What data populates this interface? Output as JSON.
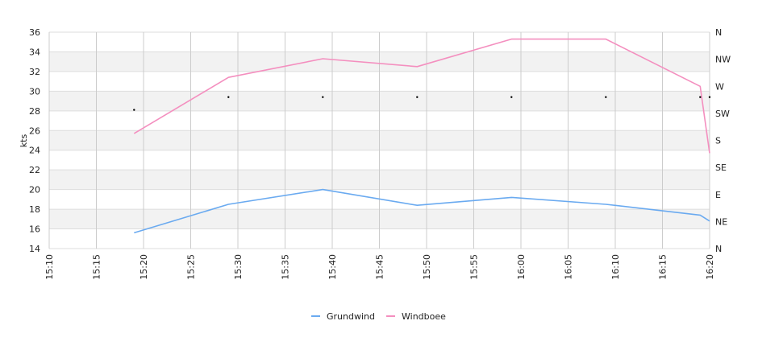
{
  "chart_data": {
    "type": "line",
    "ylabel": "kts",
    "y_ticks": [
      "14",
      "16",
      "18",
      "20",
      "22",
      "24",
      "26",
      "28",
      "30",
      "32",
      "34",
      "36"
    ],
    "ylim": [
      14,
      36
    ],
    "right_axis_labels": [
      "N",
      "NE",
      "E",
      "SE",
      "S",
      "SW",
      "W",
      "NW",
      "N"
    ],
    "x_ticks": [
      "15:10",
      "15:15",
      "15:20",
      "15:25",
      "15:30",
      "15:35",
      "15:40",
      "15:45",
      "15:50",
      "15:55",
      "16:00",
      "16:05",
      "16:10",
      "16:15",
      "16:20"
    ],
    "grid": true,
    "legend_position": "bottom",
    "series": [
      {
        "name": "Grundwind",
        "color": "#6aaaf0",
        "points": [
          {
            "t": "15:19",
            "v": 15.6
          },
          {
            "t": "15:29",
            "v": 18.5
          },
          {
            "t": "15:39",
            "v": 20.0
          },
          {
            "t": "15:49",
            "v": 18.4
          },
          {
            "t": "15:59",
            "v": 19.2
          },
          {
            "t": "16:09",
            "v": 18.5
          },
          {
            "t": "16:19",
            "v": 17.4
          },
          {
            "t": "16:20",
            "v": 16.8
          }
        ]
      },
      {
        "name": "Windboee",
        "color": "#f48fbf",
        "points": [
          {
            "t": "15:19",
            "v": 25.7
          },
          {
            "t": "15:29",
            "v": 31.4
          },
          {
            "t": "15:39",
            "v": 33.3
          },
          {
            "t": "15:49",
            "v": 32.5
          },
          {
            "t": "15:59",
            "v": 35.3
          },
          {
            "t": "16:09",
            "v": 35.3
          },
          {
            "t": "16:19",
            "v": 30.5
          },
          {
            "t": "16:20",
            "v": 23.7
          }
        ]
      }
    ],
    "direction_markers": {
      "color": "#000000",
      "points": [
        {
          "t": "15:19",
          "v": 28.1
        },
        {
          "t": "15:29",
          "v": 29.4
        },
        {
          "t": "15:39",
          "v": 29.4
        },
        {
          "t": "15:49",
          "v": 29.4
        },
        {
          "t": "15:59",
          "v": 29.4
        },
        {
          "t": "16:09",
          "v": 29.4
        },
        {
          "t": "16:19",
          "v": 29.4
        },
        {
          "t": "16:20",
          "v": 29.4
        }
      ]
    }
  }
}
